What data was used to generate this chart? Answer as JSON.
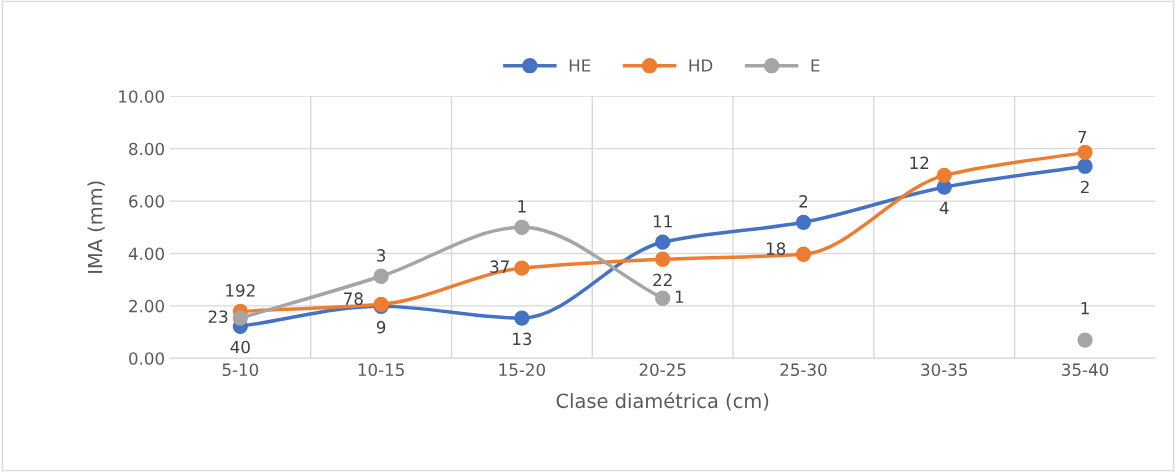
{
  "chart_data": {
    "type": "line",
    "xlabel": "Clase diamétrica (cm)",
    "ylabel": "IMA (mm)",
    "categories": [
      "5-10",
      "10-15",
      "15-20",
      "20-25",
      "25-30",
      "30-35",
      "35-40"
    ],
    "series": [
      {
        "name": "HE",
        "color": "#4472c4",
        "values": [
          1.22,
          1.98,
          1.53,
          4.43,
          5.19,
          6.53,
          7.33
        ]
      },
      {
        "name": "HD",
        "color": "#ed7d31",
        "values": [
          1.79,
          2.06,
          3.44,
          3.78,
          3.97,
          6.98,
          7.86
        ]
      },
      {
        "name": "E",
        "color": "#a5a5a5",
        "values": [
          1.53,
          3.13,
          5.0,
          2.29,
          null,
          null,
          0.69
        ]
      }
    ],
    "annotations": [
      {
        "text": "40",
        "x": "5-10",
        "y": 1.22
      },
      {
        "text": "9",
        "x": "10-15",
        "y": 1.98
      },
      {
        "text": "13",
        "x": "15-20",
        "y": 1.53
      },
      {
        "text": "11",
        "x": "20-25",
        "y": 4.43
      },
      {
        "text": "2",
        "x": "25-30",
        "y": 5.19
      },
      {
        "text": "4",
        "x": "30-35",
        "y": 6.53
      },
      {
        "text": "2",
        "x": "35-40",
        "y": 7.33
      },
      {
        "text": "192",
        "x": "5-10",
        "y": 1.79
      },
      {
        "text": "78",
        "x": "10-15",
        "y": 2.06
      },
      {
        "text": "37",
        "x": "15-20",
        "y": 3.44
      },
      {
        "text": "22",
        "x": "20-25",
        "y": 3.78
      },
      {
        "text": "18",
        "x": "25-30",
        "y": 3.97
      },
      {
        "text": "12",
        "x": "30-35",
        "y": 6.98
      },
      {
        "text": "7",
        "x": "35-40",
        "y": 7.86
      },
      {
        "text": "23",
        "x": "5-10",
        "y": 1.53
      },
      {
        "text": "3",
        "x": "10-15",
        "y": 3.13
      },
      {
        "text": "1",
        "x": "15-20",
        "y": 5.0
      },
      {
        "text": "1",
        "x": "20-25",
        "y": 2.29
      },
      {
        "text": "1",
        "x": "35-40",
        "y": 0.69
      }
    ],
    "ylim": [
      0,
      10
    ],
    "yticks": [
      {
        "value": 0,
        "label": "0.00"
      },
      {
        "value": 2,
        "label": "2.00"
      },
      {
        "value": 4,
        "label": "4.00"
      },
      {
        "value": 6,
        "label": "6.00"
      },
      {
        "value": 8,
        "label": "8.00"
      },
      {
        "value": 10,
        "label": "10.00"
      }
    ],
    "grid": true,
    "legend": "top",
    "marker": "circle",
    "line_style": "solid"
  }
}
